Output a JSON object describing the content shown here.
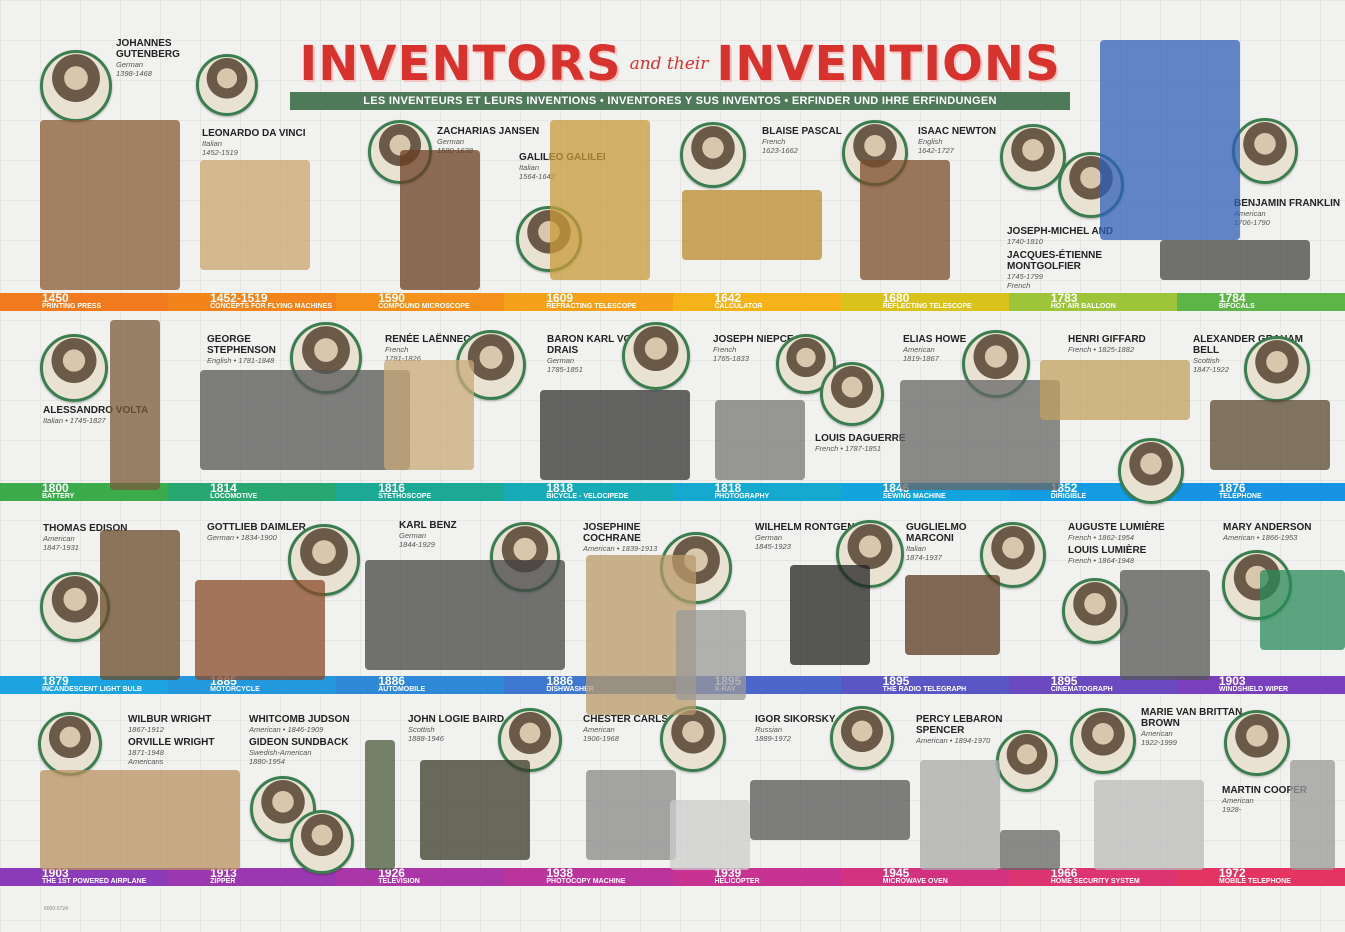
{
  "header": {
    "title_left": "INVENTORS",
    "title_mid": "and their",
    "title_right": "INVENTIONS",
    "subtitle": "LES INVENTEURS ET LEURS INVENTIONS • INVENTORES Y SUS INVENTOS • ERFINDER UND IHRE ERFINDUNGEN"
  },
  "rows": [
    {
      "band_top": 293,
      "segments": [
        {
          "year": "1450",
          "label": "PRINTING PRESS",
          "color": "#f07a1d"
        },
        {
          "year": "1452-1519",
          "label": "CONCEPTS FOR FLYING MACHINES",
          "color": "#f3841c"
        },
        {
          "year": "1590",
          "label": "COMPOUND MICROSCOPE",
          "color": "#f5901a"
        },
        {
          "year": "1609",
          "label": "REFRACTING TELESCOPE",
          "color": "#f6a11a"
        },
        {
          "year": "1642",
          "label": "CALCULATOR",
          "color": "#f5b219"
        },
        {
          "year": "1680",
          "label": "REFLECTING TELESCOPE",
          "color": "#d9c21c"
        },
        {
          "year": "1783",
          "label": "HOT AIR BALLOON",
          "color": "#9ec43a"
        },
        {
          "year": "1784",
          "label": "BIFOCALS",
          "color": "#5db447"
        }
      ]
    },
    {
      "band_top": 483,
      "segments": [
        {
          "year": "1800",
          "label": "BATTERY",
          "color": "#3cab4c"
        },
        {
          "year": "1814",
          "label": "LOCOMOTIVE",
          "color": "#27a870"
        },
        {
          "year": "1816",
          "label": "STETHOSCOPE",
          "color": "#1ba995"
        },
        {
          "year": "1818",
          "label": "BICYCLE - VELOCIPEDE",
          "color": "#17abb8"
        },
        {
          "year": "1818",
          "label": "PHOTOGRAPHY",
          "color": "#15a9cf"
        },
        {
          "year": "1846",
          "label": "SEWING MACHINE",
          "color": "#14a4dd"
        },
        {
          "year": "1852",
          "label": "DIRIGIBLE",
          "color": "#149ce2"
        },
        {
          "year": "1876",
          "label": "TELEPHONE",
          "color": "#1793e3"
        }
      ]
    },
    {
      "band_top": 676,
      "segments": [
        {
          "year": "1879",
          "label": "INCANDESCENT LIGHT BULB",
          "color": "#1da3e0"
        },
        {
          "year": "1885",
          "label": "MOTORCYCLE",
          "color": "#2498de"
        },
        {
          "year": "1886",
          "label": "AUTOMOBILE",
          "color": "#3088d9"
        },
        {
          "year": "1886",
          "label": "DISHWASHER",
          "color": "#3f78d3"
        },
        {
          "year": "1895",
          "label": "X-RAY",
          "color": "#4d66cc"
        },
        {
          "year": "1895",
          "label": "THE RADIO TELEGRAPH",
          "color": "#5b56c6"
        },
        {
          "year": "1895",
          "label": "CINEMATOGRAPH",
          "color": "#6a49c1"
        },
        {
          "year": "1903",
          "label": "WINDSHIELD WIPER",
          "color": "#7a3fbd"
        }
      ]
    },
    {
      "band_top": 868,
      "segments": [
        {
          "year": "1903",
          "label": "THE 1st POWERED AIRPLANE",
          "color": "#8b3bb7"
        },
        {
          "year": "1913",
          "label": "ZIPPER",
          "color": "#9b38b0"
        },
        {
          "year": "1926",
          "label": "TELEVISION",
          "color": "#ab36a8"
        },
        {
          "year": "1938",
          "label": "PHOTOCOPY MACHINE",
          "color": "#bb349d"
        },
        {
          "year": "1939",
          "label": "HELICOPTER",
          "color": "#c83290"
        },
        {
          "year": "1945",
          "label": "MICROWAVE OVEN",
          "color": "#d33281"
        },
        {
          "year": "1966",
          "label": "HOME SECURITY SYSTEM",
          "color": "#dc3371"
        },
        {
          "year": "1972",
          "label": "MOBILE TELEPHONE",
          "color": "#e33462"
        }
      ]
    }
  ],
  "inventors": [
    {
      "name": "JOHANNES GUTENBERG",
      "meta": "German\n1398-1468"
    },
    {
      "name": "LEONARDO DA VINCI",
      "meta": "Italian\n1452-1519"
    },
    {
      "name": "ZACHARIAS JANSEN",
      "meta": "German\n1580-1638"
    },
    {
      "name": "GALILEO GALILEI",
      "meta": "Italian\n1564-1642"
    },
    {
      "name": "BLAISE PASCAL",
      "meta": "French\n1623-1662"
    },
    {
      "name": "ISAAC NEWTON",
      "meta": "English\n1642-1727"
    },
    {
      "name": "JOSEPH-MICHEL AND",
      "meta": "1740-1810"
    },
    {
      "name": "JACQUES-ÉTIENNE MONTGOLFIER",
      "meta": "1745-1799\nFrench"
    },
    {
      "name": "BENJAMIN FRANKLIN",
      "meta": "American\n1706-1790"
    },
    {
      "name": "ALESSANDRO VOLTA",
      "meta": "Italian • 1745-1827"
    },
    {
      "name": "GEORGE STEPHENSON",
      "meta": "English • 1781-1848"
    },
    {
      "name": "RENÉE LAËNNEC",
      "meta": "French\n1781-1826"
    },
    {
      "name": "BARON KARL VON DRAIS",
      "meta": "German\n1785-1851"
    },
    {
      "name": "JOSEPH NIEPCE",
      "meta": "French\n1765-1833"
    },
    {
      "name": "LOUIS DAGUERRE",
      "meta": "French • 1787-1851"
    },
    {
      "name": "ELIAS HOWE",
      "meta": "American\n1819-1867"
    },
    {
      "name": "HENRI GIFFARD",
      "meta": "French • 1825-1882"
    },
    {
      "name": "ALEXANDER GRAHAM BELL",
      "meta": "Scottish\n1847-1922"
    },
    {
      "name": "THOMAS EDISON",
      "meta": "American\n1847-1931"
    },
    {
      "name": "GOTTLIEB DAIMLER",
      "meta": "German • 1834-1900"
    },
    {
      "name": "KARL BENZ",
      "meta": "German\n1844-1929"
    },
    {
      "name": "JOSEPHINE COCHRANE",
      "meta": "American • 1839-1913"
    },
    {
      "name": "WILHELM RONTGEN",
      "meta": "German\n1845-1923"
    },
    {
      "name": "GUGLIELMO MARCONI",
      "meta": "Italian\n1874-1937"
    },
    {
      "name": "AUGUSTE LUMIÈRE",
      "meta": "French • 1862-1954"
    },
    {
      "name": "LOUIS LUMIÈRE",
      "meta": "French • 1864-1948"
    },
    {
      "name": "MARY ANDERSON",
      "meta": "American • 1866-1953"
    },
    {
      "name": "WILBUR WRIGHT",
      "meta": "1867-1912"
    },
    {
      "name": "ORVILLE WRIGHT",
      "meta": "1871-1948\nAmericans"
    },
    {
      "name": "WHITCOMB JUDSON",
      "meta": "American • 1846-1909"
    },
    {
      "name": "GIDEON SUNDBACK",
      "meta": "Swedish-American\n1880-1954"
    },
    {
      "name": "JOHN LOGIE BAIRD",
      "meta": "Scottish\n1888-1946"
    },
    {
      "name": "CHESTER CARLSON",
      "meta": "American\n1906-1968"
    },
    {
      "name": "IGOR SIKORSKY",
      "meta": "Russian\n1889-1972"
    },
    {
      "name": "PERCY LEBARON SPENCER",
      "meta": "American • 1894-1970"
    },
    {
      "name": "MARIE VAN BRITTAN BROWN",
      "meta": "American\n1922-1999"
    },
    {
      "name": "MARTIN COOPER",
      "meta": "American\n1928-"
    }
  ],
  "colors": {
    "title": "#d8322f",
    "subtitle_band": "#4f7a5a",
    "portrait_ring": "#3a7d4e"
  }
}
